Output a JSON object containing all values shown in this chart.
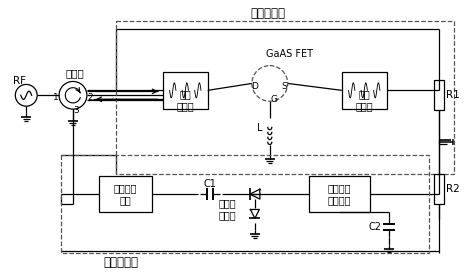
{
  "title_high": "大功率整流",
  "title_low": "低功率整流",
  "label_rf": "RF",
  "label_circulator": "环形器",
  "label_bandpass": "带通\n滤波器",
  "label_dcfilter": "直流\n滤波器",
  "label_gaas": "GaAS FET",
  "label_D": "D",
  "label_S": "S",
  "label_G": "G",
  "label_L": "L",
  "label_R1": "R1",
  "label_R2": "R2",
  "label_input_filter": "输入滤波\n电路",
  "label_dcout_filter": "直流输出\n滤波电路",
  "label_schottky": "肖特基\n二极管",
  "label_C1": "C1",
  "label_C2": "C2",
  "label_1": "1",
  "label_2": "2",
  "label_3": "3",
  "bg_color": "#ffffff",
  "line_color": "#000000",
  "dashed_color": "#555555"
}
